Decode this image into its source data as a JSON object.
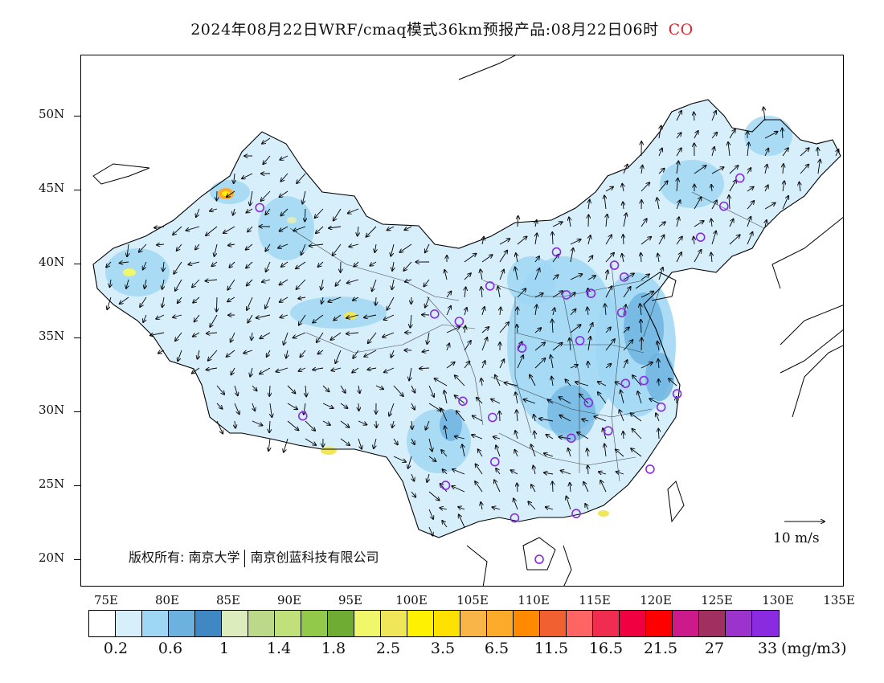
{
  "title": {
    "text": "2024年08月22日WRF/cmaq模式36km预报产品:08月22日06时",
    "species": "CO",
    "species_color": "#e0262d"
  },
  "axes": {
    "lat_labels": [
      "50N",
      "45N",
      "40N",
      "35N",
      "30N",
      "25N",
      "20N"
    ],
    "lon_labels": [
      "75E",
      "80E",
      "85E",
      "90E",
      "95E",
      "100E",
      "105E",
      "110E",
      "115E",
      "120E",
      "125E",
      "130E",
      "135E"
    ]
  },
  "colorbar": {
    "colors": [
      "#ffffff",
      "#d7eefb",
      "#9ed6f3",
      "#6cb2df",
      "#3f88c3",
      "#dcecbd",
      "#bcd98a",
      "#bfe07a",
      "#92c94a",
      "#6fac33",
      "#f1f76a",
      "#f0e65a",
      "#fff200",
      "#ffe100",
      "#f9b548",
      "#fbaa2a",
      "#ff8a00",
      "#f06030",
      "#ff6565",
      "#f02d51",
      "#f00041",
      "#ff0000",
      "#cc1a8a",
      "#a03060",
      "#9b33cc",
      "#8a2be2"
    ],
    "labels": [
      "0.2",
      "0.6",
      "1",
      "1.4",
      "1.8",
      "2.5",
      "3.5",
      "6.5",
      "11.5",
      "16.5",
      "21.5",
      "27",
      "33"
    ],
    "unit": "(mg/m3)"
  },
  "copyright": {
    "prefix": "版权所有: 南京大学",
    "suffix": "南京创蓝科技有限公司"
  },
  "reference_vector": {
    "label": "10 m/s"
  },
  "stations": [
    [
      87.6,
      43.8
    ],
    [
      91.1,
      29.7
    ],
    [
      101.8,
      36.6
    ],
    [
      103.8,
      36.1
    ],
    [
      104.1,
      30.7
    ],
    [
      106.5,
      29.6
    ],
    [
      106.7,
      26.6
    ],
    [
      102.7,
      25.0
    ],
    [
      108.3,
      22.8
    ],
    [
      110.3,
      20.0
    ],
    [
      111.7,
      40.8
    ],
    [
      106.3,
      38.5
    ],
    [
      112.5,
      37.9
    ],
    [
      114.5,
      38.0
    ],
    [
      116.4,
      39.9
    ],
    [
      117.2,
      39.1
    ],
    [
      113.6,
      34.8
    ],
    [
      117.0,
      36.7
    ],
    [
      108.9,
      34.3
    ],
    [
      114.3,
      30.6
    ],
    [
      112.9,
      28.2
    ],
    [
      115.9,
      28.7
    ],
    [
      117.3,
      31.9
    ],
    [
      118.8,
      32.1
    ],
    [
      120.2,
      30.3
    ],
    [
      121.5,
      31.2
    ],
    [
      119.3,
      26.1
    ],
    [
      113.3,
      23.1
    ],
    [
      123.4,
      41.8
    ],
    [
      125.3,
      43.9
    ],
    [
      126.6,
      45.8
    ]
  ]
}
